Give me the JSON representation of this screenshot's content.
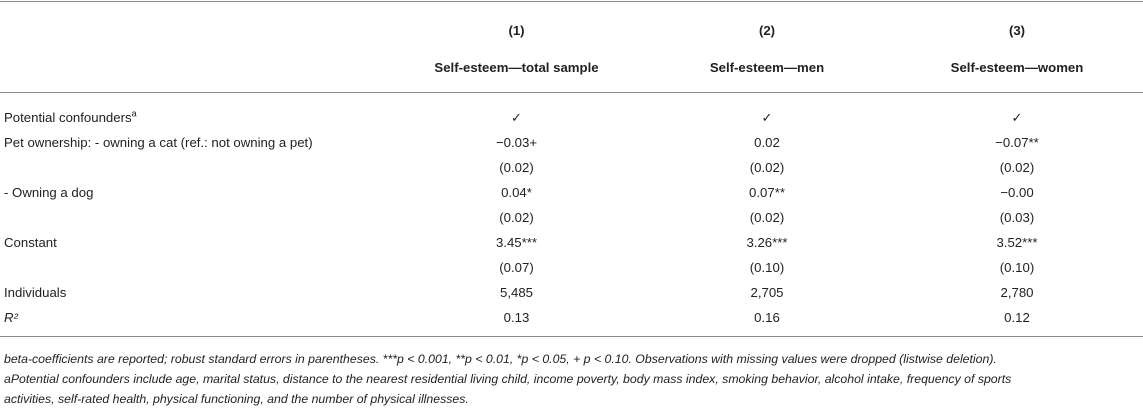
{
  "table": {
    "column_numbers": [
      "(1)",
      "(2)",
      "(3)"
    ],
    "column_titles": [
      "Self-esteem—total sample",
      "Self-esteem—men",
      "Self-esteem—women"
    ],
    "rows": [
      {
        "label": "Potential confounders",
        "label_sup": "a",
        "values": [
          "✓",
          "✓",
          "✓"
        ]
      },
      {
        "label": "Pet ownership: - owning a cat (ref.: not owning a pet)",
        "values": [
          "−0.03+",
          "0.02",
          "−0.07**"
        ]
      },
      {
        "label": "",
        "values": [
          "(0.02)",
          "(0.02)",
          "(0.02)"
        ]
      },
      {
        "label": "- Owning a dog",
        "values": [
          "0.04*",
          "0.07**",
          "−0.00"
        ]
      },
      {
        "label": "",
        "values": [
          "(0.02)",
          "(0.02)",
          "(0.03)"
        ]
      },
      {
        "label": "Constant",
        "values": [
          "3.45***",
          "3.26***",
          "3.52***"
        ]
      },
      {
        "label": "",
        "values": [
          "(0.07)",
          "(0.10)",
          "(0.10)"
        ]
      },
      {
        "label": "Individuals",
        "values": [
          "5,485",
          "2,705",
          "2,780"
        ]
      },
      {
        "label": "R²",
        "label_italic": true,
        "values": [
          "0.13",
          "0.16",
          "0.12"
        ]
      }
    ]
  },
  "notes": [
    "beta-coefficients are reported; robust standard errors in parentheses. ***p < 0.001, **p < 0.01, *p < 0.05, + p < 0.10. Observations with missing values were dropped (listwise deletion).",
    "aPotential confounders include age, marital status, distance to the nearest residential living child, income poverty, body mass index, smoking behavior, alcohol intake, frequency of sports",
    "activities, self-rated health, physical functioning, and the number of physical illnesses."
  ]
}
